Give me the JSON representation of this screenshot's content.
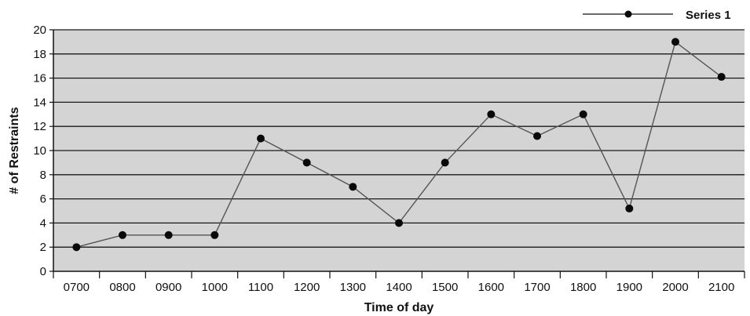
{
  "chart_data": {
    "type": "line",
    "xlabel": "Time of day",
    "ylabel": "# of Restraints",
    "ylim": [
      0,
      20
    ],
    "yticks": [
      0,
      2,
      4,
      6,
      8,
      10,
      12,
      14,
      16,
      18,
      20
    ],
    "grid": true,
    "legend_position": "top-right",
    "categories": [
      "0700",
      "0800",
      "0900",
      "1000",
      "1100",
      "1200",
      "1300",
      "1400",
      "1500",
      "1600",
      "1700",
      "1800",
      "1900",
      "2000",
      "2100"
    ],
    "series": [
      {
        "name": "Series 1",
        "values": [
          2,
          3,
          3,
          3,
          11,
          9,
          7,
          4,
          9,
          13,
          11.2,
          13,
          5.2,
          19,
          16.1
        ]
      }
    ],
    "colors": {
      "plot_background": "#d4d4d4",
      "gridline": "#1a1a1a",
      "line": "#555555",
      "marker": "#0a0a0a"
    }
  }
}
